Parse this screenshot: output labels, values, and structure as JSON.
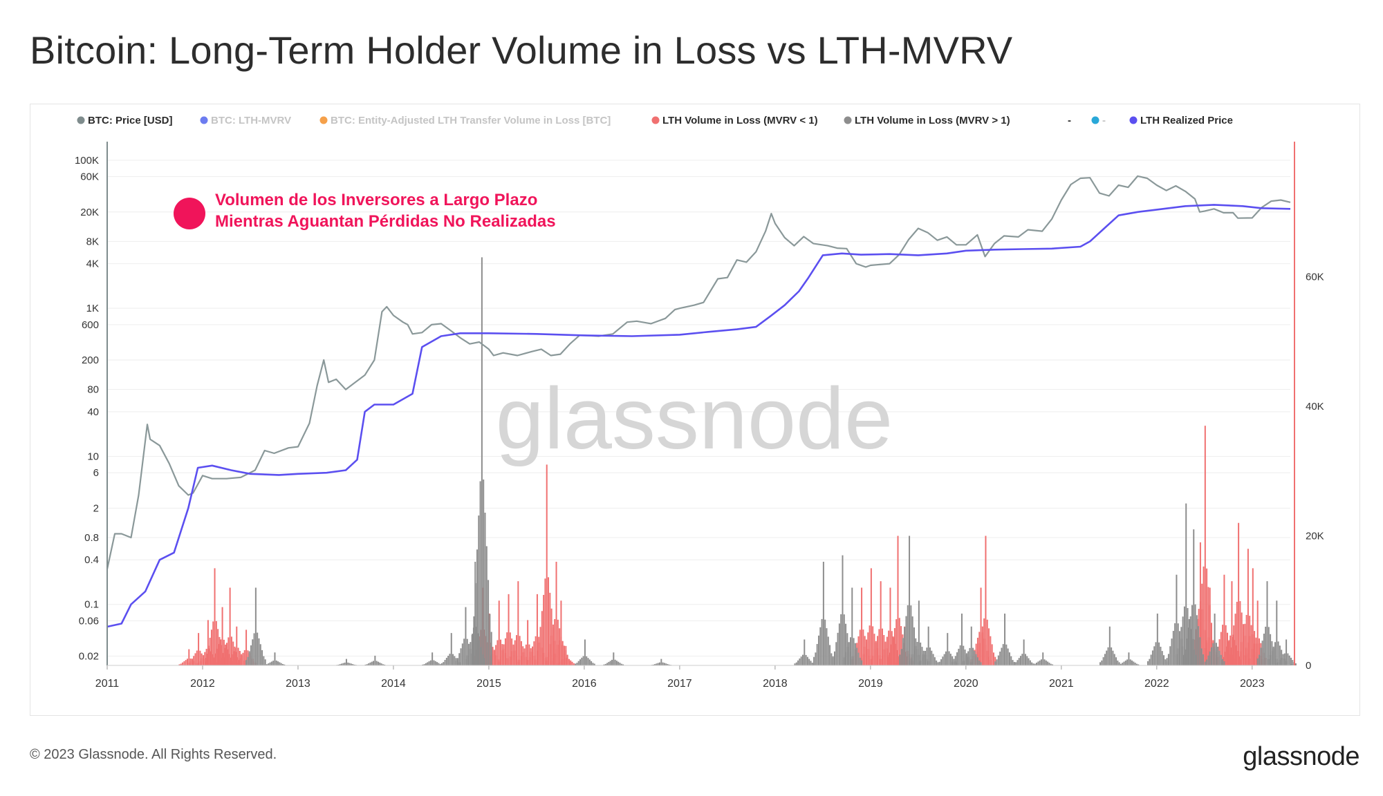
{
  "title": "Bitcoin: Long-Term Holder Volume in Loss vs LTH-MVRV",
  "footer": {
    "copyright": "© 2023 Glassnode. All Rights Reserved.",
    "logo": "glassnode"
  },
  "watermark": "glassnode",
  "chart_data": {
    "type": "line",
    "title": "Bitcoin: Long-Term Holder Volume in Loss vs LTH-MVRV",
    "legend": {
      "placement": "top",
      "items": [
        {
          "name": "BTC: Price [USD]",
          "color": "#7f8c8d",
          "active": true
        },
        {
          "name": "BTC: LTH-MVRV",
          "color": "#6c7cf0",
          "active": false
        },
        {
          "name": "BTC: Entity-Adjusted LTH Transfer Volume in Loss [BTC]",
          "color": "#f5a04a",
          "active": false
        },
        {
          "name": "LTH Volume in Loss (MVRV < 1)",
          "color": "#f07070",
          "active": true
        },
        {
          "name": "LTH Volume in Loss (MVRV > 1)",
          "color": "#8d8d8d",
          "active": true
        },
        {
          "name": "-",
          "color": "",
          "active": true,
          "marker": false
        },
        {
          "name": "-",
          "color": "#29a8d8",
          "active": false
        },
        {
          "name": "LTH Realized Price",
          "color": "#5b4ff0",
          "active": true
        }
      ]
    },
    "annotation": {
      "line1": "Volumen de los Inversores a Largo Plazo",
      "line2": "Mientras Aguantan Pérdidas No Realizadas",
      "color": "#f0145a"
    },
    "x_axis": {
      "range": [
        2011.0,
        2023.4
      ],
      "ticks": [
        "2011",
        "2012",
        "2013",
        "2014",
        "2015",
        "2016",
        "2017",
        "2018",
        "2019",
        "2020",
        "2021",
        "2022",
        "2023"
      ]
    },
    "y_axis_left": {
      "scale": "log",
      "range": [
        0.015,
        150000
      ],
      "ticks": [
        {
          "v": 100000,
          "label": "100K"
        },
        {
          "v": 60000,
          "label": "60K"
        },
        {
          "v": 20000,
          "label": "20K"
        },
        {
          "v": 8000,
          "label": "8K"
        },
        {
          "v": 4000,
          "label": "4K"
        },
        {
          "v": 1000,
          "label": "1K"
        },
        {
          "v": 600,
          "label": "600"
        },
        {
          "v": 200,
          "label": "200"
        },
        {
          "v": 80,
          "label": "80"
        },
        {
          "v": 40,
          "label": "40"
        },
        {
          "v": 10,
          "label": "10"
        },
        {
          "v": 6,
          "label": "6"
        },
        {
          "v": 2,
          "label": "2"
        },
        {
          "v": 0.8,
          "label": "0.8"
        },
        {
          "v": 0.4,
          "label": "0.4"
        },
        {
          "v": 0.1,
          "label": "0.1"
        },
        {
          "v": 0.06,
          "label": "0.06"
        },
        {
          "v": 0.02,
          "label": "0.02"
        }
      ]
    },
    "y_axis_right": {
      "scale": "linear",
      "range": [
        0,
        80000
      ],
      "ticks": [
        {
          "v": 0,
          "label": "0"
        },
        {
          "v": 20000,
          "label": "20K"
        },
        {
          "v": 40000,
          "label": "40K"
        },
        {
          "v": 60000,
          "label": "60K"
        }
      ]
    },
    "series": [
      {
        "name": "BTC: Price [USD]",
        "axis": "left",
        "color": "#8a9899",
        "points": [
          [
            2011.0,
            0.3
          ],
          [
            2011.08,
            0.9
          ],
          [
            2011.15,
            0.9
          ],
          [
            2011.25,
            0.8
          ],
          [
            2011.33,
            3
          ],
          [
            2011.42,
            27
          ],
          [
            2011.45,
            17
          ],
          [
            2011.55,
            14
          ],
          [
            2011.65,
            8
          ],
          [
            2011.75,
            4
          ],
          [
            2011.85,
            3
          ],
          [
            2011.9,
            3.2
          ],
          [
            2012.0,
            5.5
          ],
          [
            2012.1,
            5
          ],
          [
            2012.25,
            5
          ],
          [
            2012.4,
            5.2
          ],
          [
            2012.55,
            6.5
          ],
          [
            2012.65,
            12
          ],
          [
            2012.75,
            11
          ],
          [
            2012.9,
            13
          ],
          [
            2013.0,
            13.5
          ],
          [
            2013.12,
            28
          ],
          [
            2013.2,
            90
          ],
          [
            2013.27,
            200
          ],
          [
            2013.32,
            100
          ],
          [
            2013.4,
            110
          ],
          [
            2013.5,
            80
          ],
          [
            2013.6,
            100
          ],
          [
            2013.7,
            125
          ],
          [
            2013.8,
            200
          ],
          [
            2013.88,
            900
          ],
          [
            2013.93,
            1050
          ],
          [
            2014.0,
            800
          ],
          [
            2014.1,
            650
          ],
          [
            2014.15,
            600
          ],
          [
            2014.2,
            450
          ],
          [
            2014.3,
            470
          ],
          [
            2014.4,
            600
          ],
          [
            2014.5,
            620
          ],
          [
            2014.6,
            500
          ],
          [
            2014.7,
            400
          ],
          [
            2014.8,
            330
          ],
          [
            2014.9,
            350
          ],
          [
            2015.0,
            280
          ],
          [
            2015.05,
            230
          ],
          [
            2015.15,
            250
          ],
          [
            2015.3,
            230
          ],
          [
            2015.45,
            260
          ],
          [
            2015.55,
            280
          ],
          [
            2015.65,
            230
          ],
          [
            2015.75,
            240
          ],
          [
            2015.85,
            330
          ],
          [
            2015.95,
            430
          ],
          [
            2016.0,
            430
          ],
          [
            2016.15,
            420
          ],
          [
            2016.3,
            450
          ],
          [
            2016.45,
            650
          ],
          [
            2016.55,
            670
          ],
          [
            2016.7,
            620
          ],
          [
            2016.85,
            730
          ],
          [
            2016.95,
            960
          ],
          [
            2017.0,
            1000
          ],
          [
            2017.15,
            1100
          ],
          [
            2017.25,
            1200
          ],
          [
            2017.4,
            2500
          ],
          [
            2017.5,
            2600
          ],
          [
            2017.6,
            4500
          ],
          [
            2017.7,
            4200
          ],
          [
            2017.8,
            5800
          ],
          [
            2017.9,
            11000
          ],
          [
            2017.96,
            19000
          ],
          [
            2018.0,
            14000
          ],
          [
            2018.1,
            9000
          ],
          [
            2018.2,
            7000
          ],
          [
            2018.3,
            9300
          ],
          [
            2018.4,
            7500
          ],
          [
            2018.55,
            7000
          ],
          [
            2018.65,
            6500
          ],
          [
            2018.75,
            6400
          ],
          [
            2018.85,
            4000
          ],
          [
            2018.95,
            3600
          ],
          [
            2019.0,
            3800
          ],
          [
            2019.2,
            4000
          ],
          [
            2019.3,
            5300
          ],
          [
            2019.4,
            8500
          ],
          [
            2019.5,
            12000
          ],
          [
            2019.6,
            10500
          ],
          [
            2019.7,
            8300
          ],
          [
            2019.8,
            9200
          ],
          [
            2019.9,
            7200
          ],
          [
            2020.0,
            7200
          ],
          [
            2020.12,
            9800
          ],
          [
            2020.2,
            5000
          ],
          [
            2020.3,
            7500
          ],
          [
            2020.4,
            9500
          ],
          [
            2020.55,
            9200
          ],
          [
            2020.65,
            11500
          ],
          [
            2020.8,
            11000
          ],
          [
            2020.9,
            16000
          ],
          [
            2021.0,
            29000
          ],
          [
            2021.1,
            47000
          ],
          [
            2021.2,
            57000
          ],
          [
            2021.3,
            58000
          ],
          [
            2021.4,
            36000
          ],
          [
            2021.5,
            33000
          ],
          [
            2021.6,
            46000
          ],
          [
            2021.7,
            43000
          ],
          [
            2021.8,
            61000
          ],
          [
            2021.9,
            57000
          ],
          [
            2022.0,
            46000
          ],
          [
            2022.1,
            39000
          ],
          [
            2022.2,
            45000
          ],
          [
            2022.3,
            38000
          ],
          [
            2022.4,
            30000
          ],
          [
            2022.45,
            20000
          ],
          [
            2022.5,
            20500
          ],
          [
            2022.6,
            22000
          ],
          [
            2022.7,
            19500
          ],
          [
            2022.8,
            19500
          ],
          [
            2022.85,
            16500
          ],
          [
            2023.0,
            16600
          ],
          [
            2023.1,
            23000
          ],
          [
            2023.2,
            28000
          ],
          [
            2023.3,
            29000
          ],
          [
            2023.4,
            27000
          ]
        ]
      },
      {
        "name": "LTH Realized Price",
        "axis": "left",
        "color": "#5b4ff0",
        "points": [
          [
            2011.0,
            0.05
          ],
          [
            2011.15,
            0.055
          ],
          [
            2011.25,
            0.1
          ],
          [
            2011.4,
            0.15
          ],
          [
            2011.55,
            0.4
          ],
          [
            2011.7,
            0.5
          ],
          [
            2011.85,
            2
          ],
          [
            2011.95,
            7
          ],
          [
            2012.1,
            7.5
          ],
          [
            2012.3,
            6.5
          ],
          [
            2012.5,
            5.8
          ],
          [
            2012.8,
            5.6
          ],
          [
            2013.0,
            5.8
          ],
          [
            2013.3,
            6
          ],
          [
            2013.5,
            6.5
          ],
          [
            2013.62,
            9
          ],
          [
            2013.7,
            40
          ],
          [
            2013.8,
            50
          ],
          [
            2014.0,
            50
          ],
          [
            2014.2,
            70
          ],
          [
            2014.3,
            300
          ],
          [
            2014.5,
            420
          ],
          [
            2014.7,
            460
          ],
          [
            2015.0,
            460
          ],
          [
            2015.5,
            450
          ],
          [
            2016.0,
            430
          ],
          [
            2016.5,
            420
          ],
          [
            2017.0,
            440
          ],
          [
            2017.3,
            480
          ],
          [
            2017.6,
            520
          ],
          [
            2017.8,
            560
          ],
          [
            2017.95,
            780
          ],
          [
            2018.1,
            1100
          ],
          [
            2018.25,
            1700
          ],
          [
            2018.35,
            2600
          ],
          [
            2018.5,
            5200
          ],
          [
            2018.7,
            5500
          ],
          [
            2018.9,
            5300
          ],
          [
            2019.2,
            5400
          ],
          [
            2019.5,
            5200
          ],
          [
            2019.8,
            5500
          ],
          [
            2020.0,
            6000
          ],
          [
            2020.3,
            6200
          ],
          [
            2020.6,
            6300
          ],
          [
            2020.9,
            6400
          ],
          [
            2021.2,
            6800
          ],
          [
            2021.3,
            8000
          ],
          [
            2021.45,
            12000
          ],
          [
            2021.6,
            18000
          ],
          [
            2021.8,
            20000
          ],
          [
            2022.0,
            21500
          ],
          [
            2022.3,
            24000
          ],
          [
            2022.6,
            25000
          ],
          [
            2022.9,
            24000
          ],
          [
            2023.1,
            22500
          ],
          [
            2023.4,
            22000
          ]
        ]
      },
      {
        "name": "LTH Volume in Loss (MVRV < 1)",
        "axis": "right",
        "color": "#f07070",
        "type": "bar",
        "points": [
          [
            2011.85,
            2500
          ],
          [
            2011.95,
            5000
          ],
          [
            2012.05,
            7000
          ],
          [
            2012.12,
            15000
          ],
          [
            2012.2,
            9000
          ],
          [
            2012.28,
            12000
          ],
          [
            2012.35,
            6000
          ],
          [
            2012.45,
            5500
          ],
          [
            2014.93,
            12000
          ],
          [
            2015.0,
            8000
          ],
          [
            2015.1,
            10000
          ],
          [
            2015.2,
            11000
          ],
          [
            2015.3,
            13000
          ],
          [
            2015.4,
            7000
          ],
          [
            2015.5,
            11000
          ],
          [
            2015.6,
            31000
          ],
          [
            2015.7,
            16000
          ],
          [
            2015.75,
            10000
          ],
          [
            2015.8,
            3000
          ],
          [
            2018.9,
            12000
          ],
          [
            2019.0,
            15000
          ],
          [
            2019.1,
            13000
          ],
          [
            2019.2,
            12000
          ],
          [
            2019.28,
            20000
          ],
          [
            2019.35,
            6000
          ],
          [
            2020.15,
            12000
          ],
          [
            2020.2,
            20000
          ],
          [
            2022.45,
            19000
          ],
          [
            2022.5,
            37000
          ],
          [
            2022.55,
            12000
          ],
          [
            2022.7,
            14000
          ],
          [
            2022.78,
            13000
          ],
          [
            2022.85,
            22000
          ],
          [
            2022.95,
            18000
          ],
          [
            2023.0,
            15000
          ],
          [
            2023.05,
            10000
          ]
        ]
      },
      {
        "name": "LTH Volume in Loss (MVRV > 1)",
        "axis": "right",
        "color": "#8d8d8d",
        "type": "bar",
        "points": [
          [
            2012.55,
            12000
          ],
          [
            2012.75,
            2000
          ],
          [
            2013.5,
            1000
          ],
          [
            2013.8,
            1500
          ],
          [
            2014.4,
            2000
          ],
          [
            2014.6,
            5000
          ],
          [
            2014.75,
            9000
          ],
          [
            2014.85,
            16000
          ],
          [
            2014.92,
            63000
          ],
          [
            2016.0,
            4000
          ],
          [
            2016.3,
            2000
          ],
          [
            2016.8,
            1000
          ],
          [
            2018.3,
            4000
          ],
          [
            2018.5,
            16000
          ],
          [
            2018.7,
            17000
          ],
          [
            2018.8,
            12000
          ],
          [
            2019.4,
            20000
          ],
          [
            2019.5,
            10000
          ],
          [
            2019.6,
            6000
          ],
          [
            2019.8,
            5000
          ],
          [
            2019.95,
            8000
          ],
          [
            2020.05,
            6000
          ],
          [
            2020.4,
            8000
          ],
          [
            2020.6,
            4000
          ],
          [
            2020.8,
            2000
          ],
          [
            2021.5,
            6000
          ],
          [
            2021.7,
            2000
          ],
          [
            2022.0,
            8000
          ],
          [
            2022.2,
            14000
          ],
          [
            2022.3,
            25000
          ],
          [
            2022.38,
            21000
          ],
          [
            2022.6,
            8000
          ],
          [
            2023.15,
            13000
          ],
          [
            2023.25,
            10000
          ],
          [
            2023.35,
            4000
          ]
        ]
      }
    ]
  }
}
